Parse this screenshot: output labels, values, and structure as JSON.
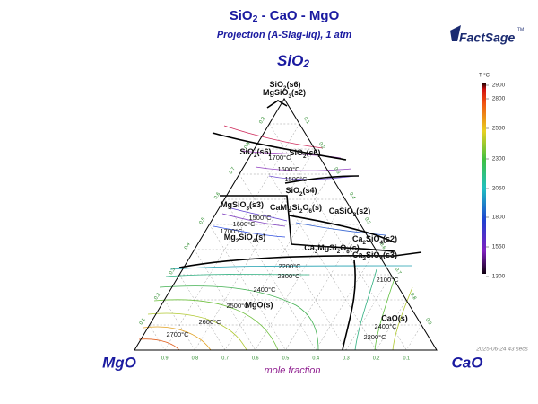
{
  "header": {
    "title": "SiO2 - CaO - MgO",
    "subtitle": "Projection (A-Slag-liq), 1 atm",
    "logo": "FactSage",
    "logo_mark": "TM"
  },
  "corners": {
    "top": "SiO2",
    "left": "MgO",
    "right": "CaO"
  },
  "axis_label": "mole fraction",
  "timestamp": "2025-06-24  43 secs",
  "edge_ticks": {
    "bottom": [
      "0.9",
      "0.8",
      "0.7",
      "0.6",
      "0.5",
      "0.4",
      "0.3",
      "0.2",
      "0.1"
    ],
    "left": [
      "0.1",
      "0.2",
      "0.3",
      "0.4",
      "0.5",
      "0.6",
      "0.7",
      "0.8",
      "0.9"
    ],
    "right": [
      "0.1",
      "0.2",
      "0.3",
      "0.4",
      "0.5",
      "0.6",
      "0.7",
      "0.8",
      "0.9"
    ]
  },
  "colorbar": {
    "unit": "T °C",
    "labels": [
      "2900",
      "2800",
      "2550",
      "2300",
      "2050",
      "1800",
      "1550",
      "1300"
    ]
  },
  "phases": [
    "SiO2(s6)",
    "MgSiO3(s2)",
    "SiO2(s6)",
    "SiO2(s6)",
    "SiO2(s4)",
    "MgSiO3(s3)",
    "CaMgSi2O6(s)",
    "CaSiO3(s2)",
    "Mg2SiO4(s)",
    "Ca3MgSi2O8(s)",
    "Ca2SiO4(s3)",
    "Ca2SiO4(s2)",
    "MgO(s)",
    "CaO(s)"
  ],
  "isotherms": [
    "1700°C",
    "1600°C",
    "1500°C",
    "1600°C",
    "1500°C",
    "1700°C",
    "2200°C",
    "2300°C",
    "2400°C",
    "2500°C",
    "2600°C",
    "2700°C",
    "2100°C",
    "2200°C",
    "2400°C"
  ]
}
